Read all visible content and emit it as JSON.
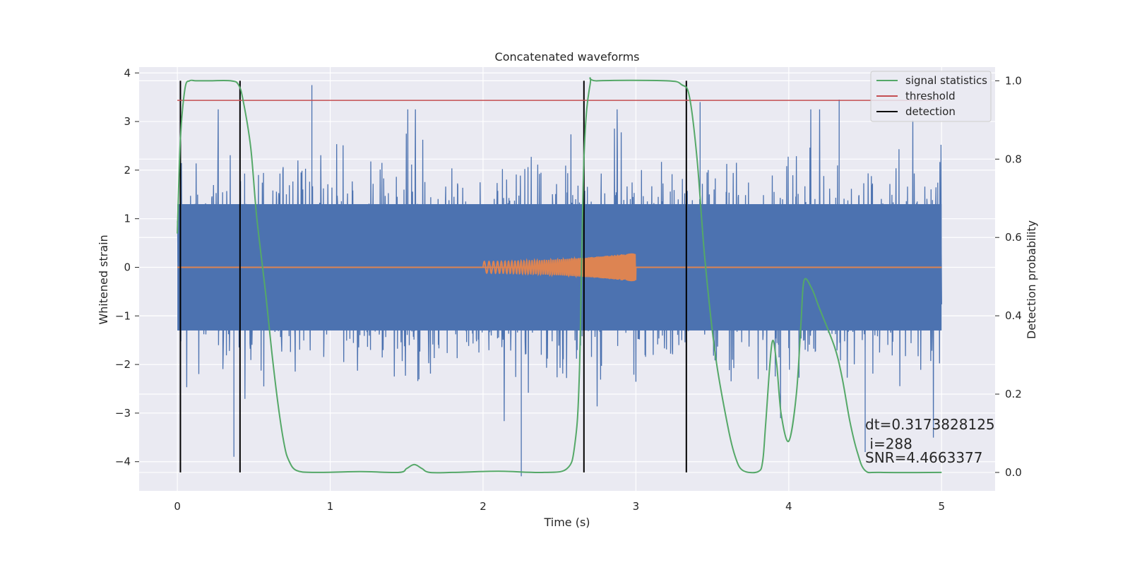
{
  "chart_data": {
    "type": "line",
    "title": "Concatenated waveforms",
    "xlabel": "Time (s)",
    "ylabel_left": "Whitened strain",
    "ylabel_right": "Detection probability",
    "xlim": [
      -0.25,
      5.35
    ],
    "ylim_left": [
      -4.6,
      4.12
    ],
    "ylim_right": [
      -0.047,
      1.035
    ],
    "x_ticks": [
      0,
      1,
      2,
      3,
      4,
      5
    ],
    "x_tick_labels": [
      "0",
      "1",
      "2",
      "3",
      "4",
      "5"
    ],
    "y_left_ticks": [
      -4,
      -3,
      -2,
      -1,
      0,
      1,
      2,
      3,
      4
    ],
    "y_left_tick_labels": [
      "−4",
      "−3",
      "−2",
      "−1",
      "0",
      "1",
      "2",
      "3",
      "4"
    ],
    "y_right_ticks": [
      0.0,
      0.2,
      0.4,
      0.6,
      0.8,
      1.0
    ],
    "y_right_tick_labels": [
      "0.0",
      "0.2",
      "0.4",
      "0.6",
      "0.8",
      "1.0"
    ],
    "grid": true,
    "legend_position": "top-right",
    "legend": [
      {
        "label": "signal statistics",
        "color": "#55a868"
      },
      {
        "label": "threshold",
        "color": "#c44e52"
      },
      {
        "label": "detection",
        "color": "#000000"
      }
    ],
    "colors": {
      "strain": "#4c72b0",
      "injection": "#dd8452",
      "signal_statistics": "#55a868",
      "threshold": "#c44e52",
      "detection": "#000000",
      "axes_background": "#eaeaf2",
      "grid": "#ffffff"
    },
    "series": [
      {
        "name": "strain",
        "axis": "left",
        "x_range": [
          0,
          5
        ],
        "y_range": [
          -4.3,
          3.75
        ],
        "envelope_core": 1.3,
        "sample_spikes": [
          {
            "x": 0.88,
            "y": 3.75
          },
          {
            "x": 2.25,
            "y": -4.3
          },
          {
            "x": 4.33,
            "y": 3.45
          },
          {
            "x": 3.42,
            "y": 3.4
          },
          {
            "x": 0.37,
            "y": -3.9
          },
          {
            "x": 4.5,
            "y": -3.8
          }
        ]
      },
      {
        "name": "injection",
        "axis": "left",
        "x_range": [
          2.0,
          3.0
        ],
        "amplitude_start": 0.12,
        "amplitude_end": 0.3,
        "baseline": 0
      },
      {
        "name": "signal statistics",
        "axis": "right",
        "x": [
          0,
          0.02,
          0.05,
          0.08,
          0.12,
          0.2,
          0.35,
          0.4,
          0.43,
          0.48,
          0.52,
          0.58,
          0.62,
          0.66,
          0.7,
          0.73,
          0.78,
          0.9,
          1.2,
          1.45,
          1.5,
          1.55,
          1.6,
          1.65,
          1.8,
          2.1,
          2.4,
          2.55,
          2.6,
          2.63,
          2.66,
          2.7,
          2.75,
          3.2,
          3.3,
          3.35,
          3.4,
          3.45,
          3.52,
          3.6,
          3.65,
          3.7,
          3.8,
          3.83,
          3.85,
          3.89,
          3.92,
          3.95,
          4.0,
          4.05,
          4.08,
          4.1,
          4.15,
          4.2,
          4.3,
          4.35,
          4.4,
          4.45,
          4.5,
          4.6,
          5.0
        ],
        "y": [
          0.61,
          0.85,
          0.98,
          1.0,
          1.0,
          1.0,
          1.0,
          0.99,
          0.95,
          0.83,
          0.65,
          0.45,
          0.3,
          0.17,
          0.07,
          0.03,
          0.005,
          0.0,
          0.002,
          0.0,
          0.01,
          0.02,
          0.01,
          0.0,
          0.0,
          0.003,
          0.0,
          0.01,
          0.07,
          0.25,
          0.8,
          0.99,
          1.0,
          1.0,
          0.99,
          0.96,
          0.8,
          0.55,
          0.3,
          0.12,
          0.04,
          0.005,
          0.002,
          0.03,
          0.13,
          0.33,
          0.28,
          0.15,
          0.08,
          0.2,
          0.38,
          0.49,
          0.47,
          0.42,
          0.32,
          0.24,
          0.13,
          0.05,
          0.005,
          0.0,
          0.0
        ]
      },
      {
        "name": "threshold",
        "axis": "right",
        "x": [
          0,
          5
        ],
        "y": [
          0.95,
          0.95
        ]
      }
    ],
    "detections_x": [
      0.02,
      0.41,
      2.66,
      3.33
    ],
    "annotations": [
      {
        "text": "dt=0.3173828125",
        "x": 4.5,
        "y": 0.11
      },
      {
        "text": " i=288",
        "x": 4.5,
        "y": 0.06
      },
      {
        "text": "SNR=4.4663377",
        "x": 4.5,
        "y": 0.025
      }
    ]
  }
}
